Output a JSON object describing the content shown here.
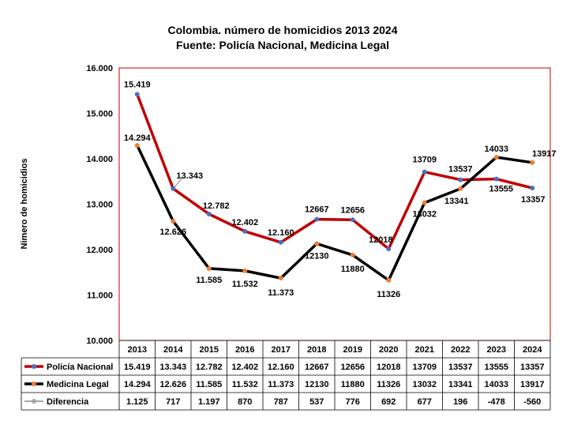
{
  "chart_data": {
    "type": "line",
    "title": "Colombia. número de homicidios 2013 2024",
    "subtitle": "Fuente: Policía Nacional, Medicina Legal",
    "ylabel": "Nimero de homicidios",
    "ylim": [
      10000,
      16000
    ],
    "y_ticks": [
      "10.000",
      "11.000",
      "12.000",
      "13.000",
      "14.000",
      "15.000",
      "16.000"
    ],
    "categories": [
      "2013",
      "2014",
      "2015",
      "2016",
      "2017",
      "2018",
      "2019",
      "2020",
      "2021",
      "2022",
      "2023",
      "2024"
    ],
    "series": [
      {
        "name": "Policía Nacional",
        "color": "#c00000",
        "marker_color": "#4472c4",
        "values": [
          15419,
          13343,
          12782,
          12402,
          12160,
          12667,
          12656,
          12018,
          13709,
          13537,
          13555,
          13357
        ],
        "labels": [
          "15.419",
          "13.343",
          "12.782",
          "12.402",
          "12.160",
          "12667",
          "12656",
          "12018",
          "13709",
          "13537",
          "13555",
          "13357"
        ]
      },
      {
        "name": "Medicina Legal",
        "color": "#000000",
        "marker_color": "#ed7d31",
        "values": [
          14294,
          12626,
          11585,
          11532,
          11373,
          12130,
          11880,
          11326,
          13032,
          13341,
          14033,
          13917
        ],
        "labels": [
          "14.294",
          "12.626",
          "11.585",
          "11.532",
          "11.373",
          "12130",
          "11880",
          "11326",
          "13032",
          "13341",
          "14033",
          "13917"
        ]
      }
    ],
    "table": {
      "rows": [
        {
          "name": "Policía Nacional",
          "line_color": "#c00000",
          "marker_color": "#4472c4",
          "cells": [
            "15.419",
            "13.343",
            "12.782",
            "12.402",
            "12.160",
            "12667",
            "12656",
            "12018",
            "13709",
            "13537",
            "13555",
            "13357"
          ]
        },
        {
          "name": "Medicina Legal",
          "line_color": "#000000",
          "marker_color": "#ed7d31",
          "cells": [
            "14.294",
            "12.626",
            "11.585",
            "11.532",
            "11.373",
            "12130",
            "11880",
            "11326",
            "13032",
            "13341",
            "14033",
            "13917"
          ]
        },
        {
          "name": "Diferencia",
          "line_color": "#a5a5a5",
          "marker_color": "#a5a5a5",
          "cells": [
            "1.125",
            "717",
            "1.197",
            "870",
            "787",
            "537",
            "776",
            "692",
            "677",
            "196",
            "-478",
            "-560"
          ]
        }
      ]
    },
    "plot_border_color": "#c00000",
    "grid": false,
    "legend": "data-table"
  }
}
